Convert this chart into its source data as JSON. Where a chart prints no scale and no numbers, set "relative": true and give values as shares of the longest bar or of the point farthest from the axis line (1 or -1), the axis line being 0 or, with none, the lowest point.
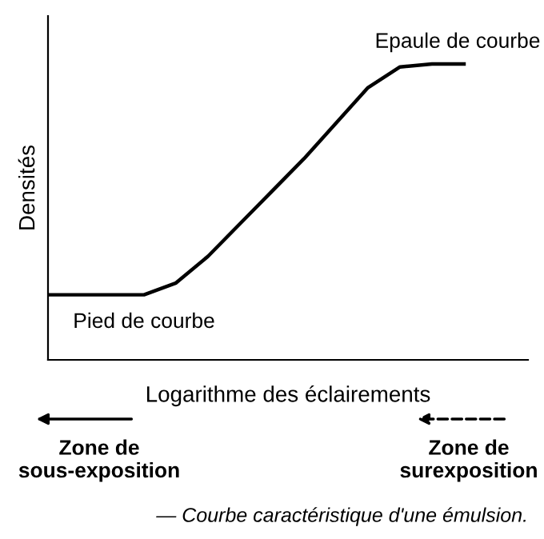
{
  "chart_data": {
    "type": "line",
    "relative": true,
    "ylabel": "Densités",
    "xlabel": "Logarithme des éclairements",
    "categories": [
      null,
      null,
      null,
      null,
      null,
      null,
      null,
      null,
      null,
      null,
      null,
      null,
      null,
      null
    ],
    "series": [
      {
        "color": "#000000",
        "values": [
          0.22,
          0.22,
          0.22,
          0.22,
          0.26,
          0.35,
          0.46,
          0.57,
          0.68,
          0.8,
          0.92,
          0.99,
          1,
          1
        ]
      }
    ],
    "annotations": [
      "Epaule de courbe",
      "Pied de courbe",
      "Zone de\nsous-exposition",
      "Zone de\nsurexposition",
      "— Courbe caractéristique d'une émulsion."
    ],
    "grid": false,
    "legend": false,
    "marker": "none",
    "line_style": "solid"
  }
}
